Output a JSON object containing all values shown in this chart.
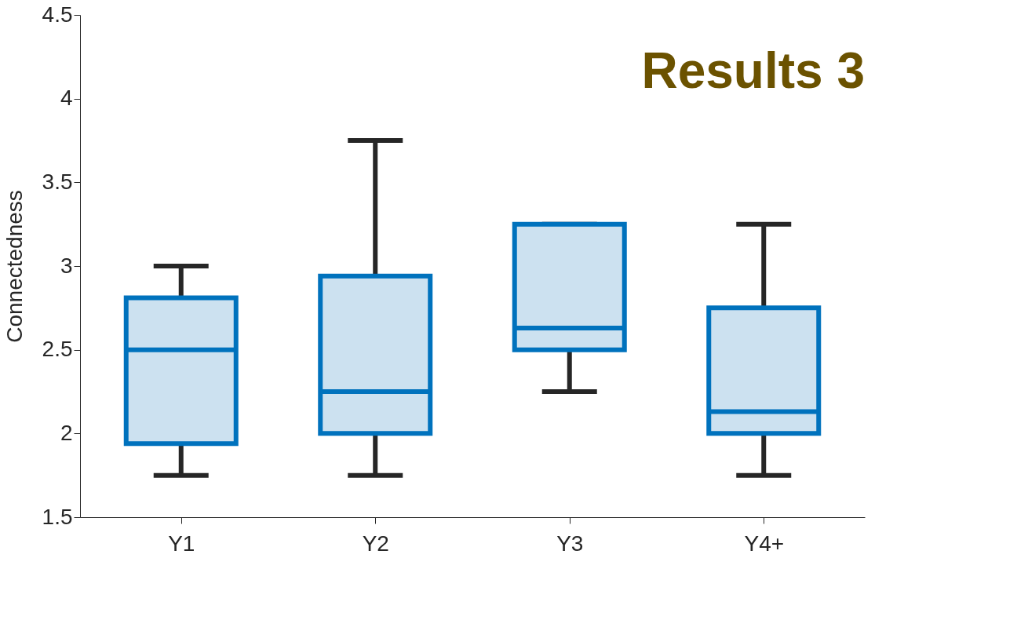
{
  "chart_data": {
    "type": "box",
    "title": "Results 3",
    "ylabel": "Connectedness",
    "categories": [
      "Y1",
      "Y2",
      "Y3",
      "Y4+"
    ],
    "boxes": [
      {
        "low": 1.75,
        "q1": 1.94,
        "median": 2.5,
        "q3": 2.81,
        "high": 3.0
      },
      {
        "low": 1.75,
        "q1": 2.0,
        "median": 2.25,
        "q3": 2.94,
        "high": 3.75
      },
      {
        "low": 2.25,
        "q1": 2.5,
        "median": 2.63,
        "q3": 3.25,
        "high": 3.25
      },
      {
        "low": 1.75,
        "q1": 2.0,
        "median": 2.13,
        "q3": 2.75,
        "high": 3.25
      }
    ],
    "color": "#0072bd",
    "ylim": [
      1.5,
      4.5
    ],
    "yticks": [
      1.5,
      2,
      2.5,
      3,
      3.5,
      4,
      4.5
    ],
    "grid": false
  }
}
